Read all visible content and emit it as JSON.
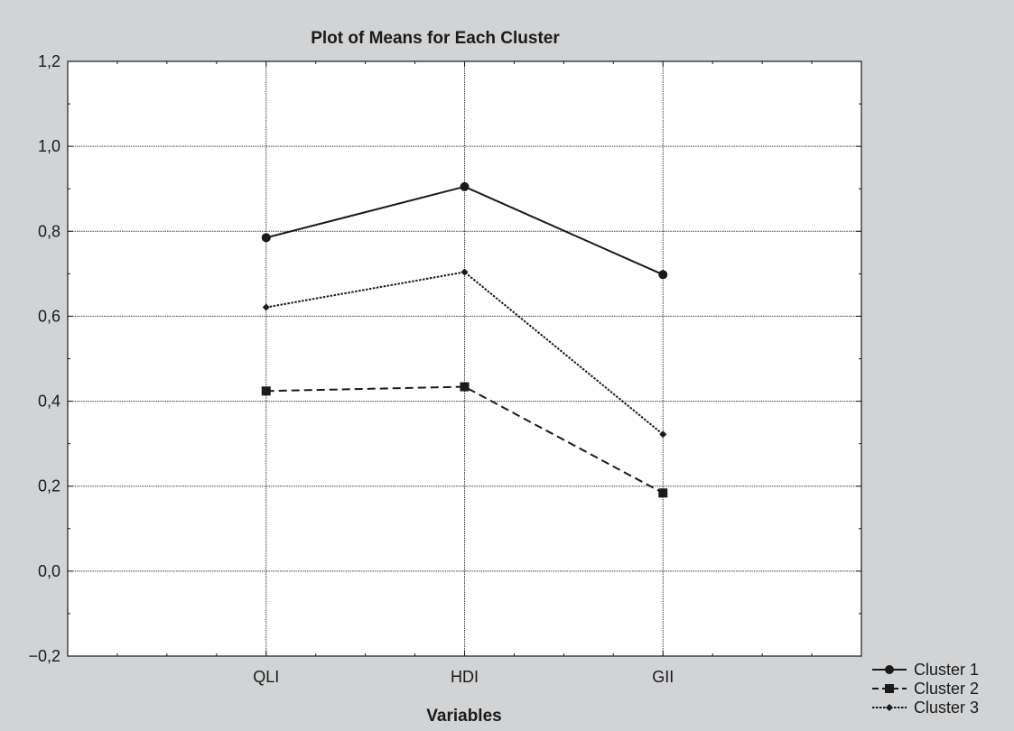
{
  "chart_data": {
    "type": "line",
    "title": "Plot of Means for Each Cluster",
    "xlabel": "Variables",
    "ylabel": "",
    "categories": [
      "QLI",
      "HDI",
      "GII"
    ],
    "ylim": [
      -0.2,
      1.2
    ],
    "yticks": [
      "1,2",
      "1,0",
      "0,8",
      "0,6",
      "0,4",
      "0,2",
      "0,0",
      "−0,2"
    ],
    "ytick_values": [
      1.2,
      1.0,
      0.8,
      0.6,
      0.4,
      0.2,
      0.0,
      -0.2
    ],
    "grid": true,
    "legend_position": "bottom-right",
    "series": [
      {
        "name": "Cluster  1",
        "values": [
          0.785,
          0.905,
          0.698
        ],
        "marker": "circle",
        "dash": "solid",
        "color": "#1a1a1a"
      },
      {
        "name": "Cluster  2",
        "values": [
          0.424,
          0.434,
          0.184
        ],
        "marker": "square",
        "dash": "dashed",
        "color": "#1a1a1a"
      },
      {
        "name": "Cluster  3",
        "values": [
          0.621,
          0.704,
          0.322
        ],
        "marker": "diamond",
        "dash": "dotted",
        "color": "#1a1a1a"
      }
    ]
  }
}
